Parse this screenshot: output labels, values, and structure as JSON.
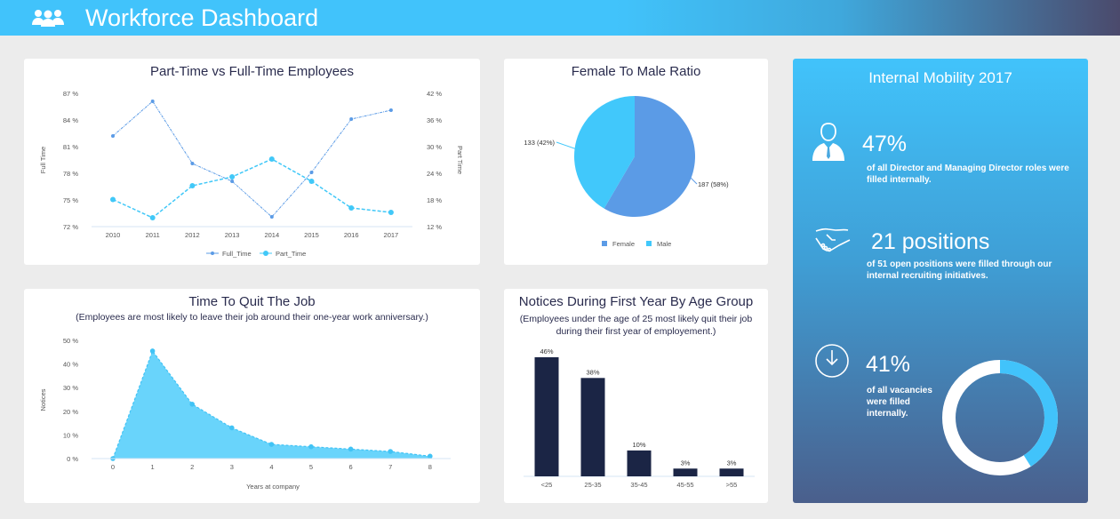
{
  "header": {
    "title": "Workforce Dashboard",
    "icon": "users-icon"
  },
  "colors": {
    "accent": "#41c3fb",
    "full_time": "#5b9be6",
    "part_time": "#41c8f8",
    "female": "#5b9be6",
    "male": "#41c8fb",
    "bar": "#1b2545"
  },
  "line_card": {
    "title": "Part-Time vs Full-Time Employees"
  },
  "pie_card": {
    "title": "Female To Male Ratio"
  },
  "area_card": {
    "title": "Time To Quit The Job",
    "subtitle": "(Employees are most likely to leave their job around their one-year work anniversary.)"
  },
  "bar_card": {
    "title": "Notices During First Year By Age Group",
    "subtitle_lines": [
      "(Employees under the age of 25 most likely quit their job",
      "during their first year of employement.)"
    ]
  },
  "mobility": {
    "title": "Internal Mobility 2017",
    "stats": [
      {
        "icon": "businessman-icon",
        "value": "47%",
        "desc_lines": [
          "of all Director and Managing Director roles were",
          "filled internally."
        ]
      },
      {
        "icon": "handshake-icon",
        "value": "21 positions",
        "desc_lines": [
          "of 51 open positions were filled through our",
          "internal recruiting initiatives."
        ]
      },
      {
        "icon": "clock-down-icon",
        "value": "41%",
        "desc_lines": [
          "of all vacancies",
          "were filled",
          "internally."
        ]
      }
    ],
    "donut_percent": 41
  },
  "chart_data": [
    {
      "type": "line",
      "title": "Part-Time vs Full-Time Employees",
      "categories": [
        "2010",
        "2011",
        "2012",
        "2013",
        "2014",
        "2015",
        "2016",
        "2017"
      ],
      "ylabel": "Full Time",
      "y2label": "Part Time",
      "ylim": [
        72,
        87
      ],
      "y2lim": [
        12,
        42
      ],
      "yticks": [
        "87 %",
        "84 %",
        "81 %",
        "78 %",
        "75 %",
        "72 %"
      ],
      "y2ticks": [
        "42 %",
        "36 %",
        "30 %",
        "24 %",
        "18 %",
        "12 %"
      ],
      "legend": "bottom",
      "series": [
        {
          "name": "Full_Time",
          "axis": "left",
          "values": [
            82.2,
            86.1,
            79.1,
            77.1,
            73.1,
            78.1,
            84.1,
            85.1
          ]
        },
        {
          "name": "Part_Time",
          "axis": "right",
          "values": [
            18.1,
            14,
            21.2,
            23.2,
            27.2,
            22.2,
            16.2,
            15.2
          ]
        }
      ]
    },
    {
      "type": "pie",
      "title": "Female To Male Ratio",
      "legend": "bottom",
      "slices": [
        {
          "name": "Female",
          "value": 187,
          "label": "187 (58%)"
        },
        {
          "name": "Male",
          "value": 133,
          "label": "133 (42%)"
        }
      ]
    },
    {
      "type": "area",
      "title": "Time To Quit The Job",
      "xlabel": "Years at company",
      "ylabel": "Notices",
      "ylim": [
        0,
        50
      ],
      "yticks": [
        "50 %",
        "40 %",
        "30 %",
        "20 %",
        "10 %",
        "0 %"
      ],
      "x": [
        0,
        1,
        2,
        3,
        4,
        5,
        6,
        7,
        8
      ],
      "values": [
        0,
        45.5,
        23,
        13,
        6,
        5,
        4,
        3,
        1
      ]
    },
    {
      "type": "bar",
      "title": "Notices During First Year By Age Group",
      "categories": [
        "<25",
        "25-35",
        "35-45",
        "45-55",
        ">55"
      ],
      "values": [
        46,
        38,
        10,
        3,
        3
      ],
      "labels": [
        "46%",
        "38%",
        "10%",
        "3%",
        "3%"
      ],
      "ylim": [
        0,
        46
      ]
    }
  ]
}
